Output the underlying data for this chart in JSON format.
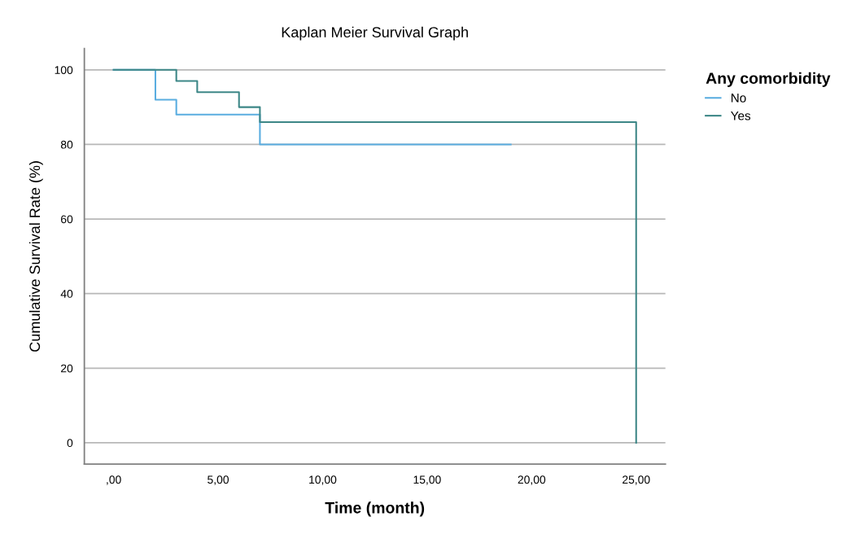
{
  "chart_data": {
    "type": "step",
    "title": "Kaplan Meier Survival Graph",
    "xlabel": "Time (month)",
    "ylabel": "Cumulative Survival Rate (%)",
    "legend_title": "Any comorbidity",
    "series": [
      {
        "name": "No",
        "color": "#5aade0",
        "x": [
          0,
          2,
          3,
          7,
          19
        ],
        "values": [
          100,
          92,
          88,
          80,
          80
        ]
      },
      {
        "name": "Yes",
        "color": "#3d8787",
        "x": [
          0,
          3,
          4,
          6,
          7,
          25,
          25
        ],
        "values": [
          100,
          97,
          94,
          90,
          86,
          86,
          0
        ]
      }
    ],
    "xlim": [
      -1.4,
      26.4
    ],
    "xticks": [
      {
        "value": 0,
        "label": ",00"
      },
      {
        "value": 5,
        "label": "5,00"
      },
      {
        "value": 10,
        "label": "10,00"
      },
      {
        "value": 15,
        "label": "15,00"
      },
      {
        "value": 20,
        "label": "20,00"
      },
      {
        "value": 25,
        "label": "25,00"
      }
    ],
    "ylim": [
      -5.7,
      105.7
    ],
    "yticks": [
      0,
      20,
      40,
      60,
      80,
      100
    ],
    "grid": "y",
    "legend": "top right"
  }
}
